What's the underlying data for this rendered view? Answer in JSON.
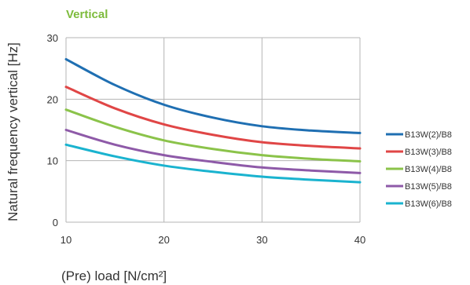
{
  "chart_data": {
    "type": "line",
    "title": "Vertical",
    "title_color": "#7dbb3c",
    "xlabel": "(Pre) load [N/cm²]",
    "ylabel": "Natural frequency vertical [Hz]",
    "xlim": [
      10,
      40
    ],
    "ylim": [
      0,
      30
    ],
    "x_ticks": [
      10,
      20,
      30,
      40
    ],
    "y_ticks": [
      0,
      10,
      20,
      30
    ],
    "grid": true,
    "legend_position": "right",
    "x": [
      10,
      15,
      20,
      25,
      30,
      35,
      40
    ],
    "series": [
      {
        "name": "B13W(2)/B8",
        "color": "#1f6fb2",
        "values": [
          26.5,
          22.3,
          19.1,
          17.0,
          15.6,
          14.9,
          14.5
        ]
      },
      {
        "name": "B13W(3)/B8",
        "color": "#e04646",
        "values": [
          22.0,
          18.5,
          15.9,
          14.2,
          13.0,
          12.4,
          12.0
        ]
      },
      {
        "name": "B13W(4)/B8",
        "color": "#8bc34a",
        "values": [
          18.3,
          15.5,
          13.3,
          11.9,
          10.9,
          10.3,
          9.9
        ]
      },
      {
        "name": "B13W(5)/B8",
        "color": "#8e5aa8",
        "values": [
          15.0,
          12.6,
          10.9,
          9.8,
          8.9,
          8.4,
          8.0
        ]
      },
      {
        "name": "B13W(6)/B8",
        "color": "#1ab3cf",
        "values": [
          12.6,
          10.7,
          9.2,
          8.2,
          7.4,
          6.9,
          6.5
        ]
      }
    ]
  }
}
